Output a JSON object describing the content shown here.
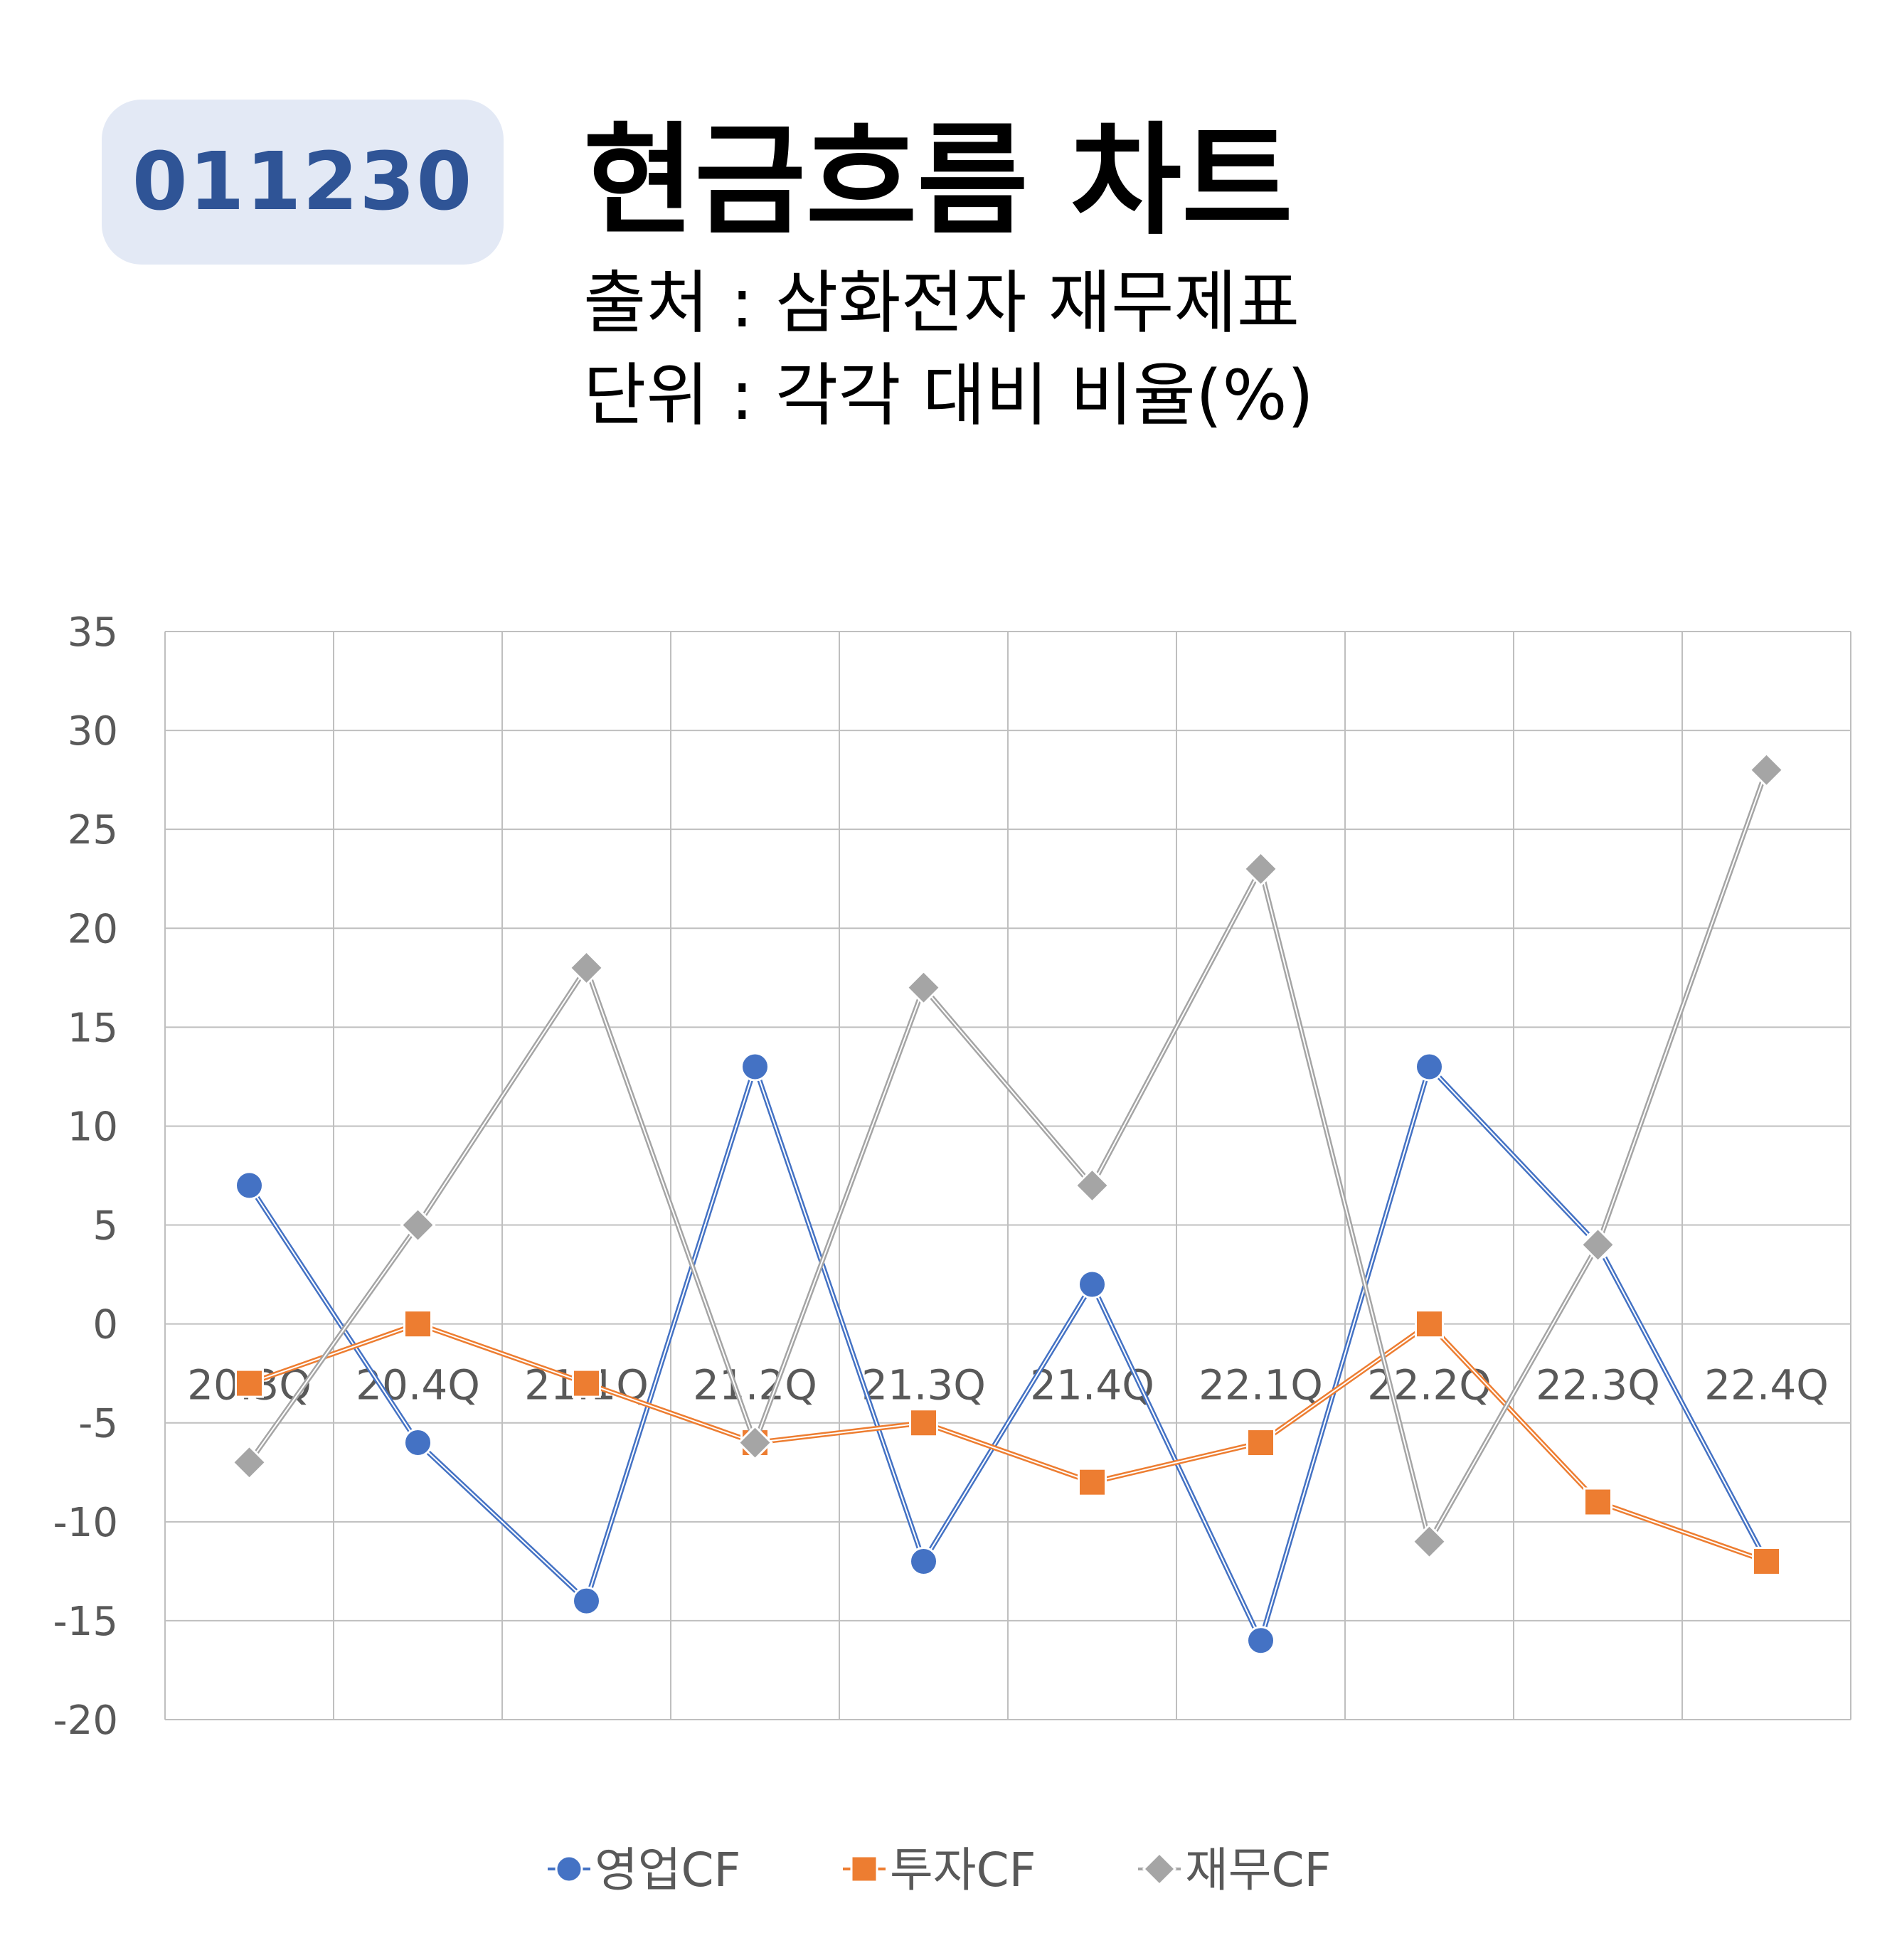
{
  "header": {
    "code": "011230",
    "title": "현금흐름 차트",
    "source": "출처 : 삼화전자 재무제표",
    "unit": "단위 : 각각 대비 비율(%)"
  },
  "chart_data": {
    "type": "line",
    "categories": [
      "20.3Q",
      "20.4Q",
      "21.1Q",
      "21.2Q",
      "21.3Q",
      "21.4Q",
      "22.1Q",
      "22.2Q",
      "22.3Q",
      "22.4Q"
    ],
    "ylim": [
      -20,
      35
    ],
    "yticks": [
      35,
      30,
      25,
      20,
      15,
      10,
      5,
      0,
      -5,
      -10,
      -15,
      -20
    ],
    "grid": true,
    "legend_position": "bottom",
    "series": [
      {
        "name": "영업CF",
        "marker": "circle",
        "color": "#4472c4",
        "values": [
          7,
          -6,
          -14,
          13,
          -12,
          2,
          -16,
          13,
          4,
          -12
        ]
      },
      {
        "name": "투자CF",
        "marker": "square",
        "color": "#ed7d31",
        "values": [
          -3,
          0,
          -3,
          -6,
          -5,
          -8,
          -6,
          0,
          -9,
          -12
        ]
      },
      {
        "name": "재무CF",
        "marker": "diamond",
        "color": "#a5a5a5",
        "values": [
          -7,
          5,
          18,
          -6,
          17,
          7,
          23,
          -11,
          4,
          28
        ]
      }
    ]
  }
}
